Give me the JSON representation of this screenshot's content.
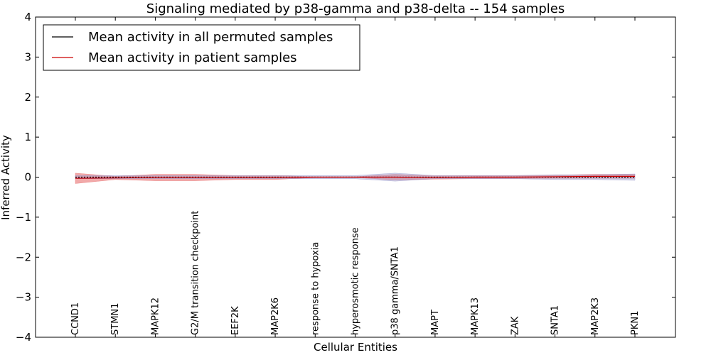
{
  "chart_data": {
    "type": "line",
    "title": "Signaling mediated by p38-gamma and p38-delta -- 154 samples",
    "xlabel": "Cellular Entities",
    "ylabel": "Inferred Activity",
    "ylim": [
      -4,
      4
    ],
    "yticks": [
      4,
      3,
      2,
      1,
      0,
      -1,
      -2,
      -3,
      -4
    ],
    "ytick_labels": [
      "4",
      "3",
      "2",
      "1",
      "0",
      "−1",
      "−2",
      "−3",
      "−4"
    ],
    "categories": [
      "CCND1",
      "STMN1",
      "MAPK12",
      "G2/M transition checkpoint",
      "EEF2K",
      "MAP2K6",
      "response to hypoxia",
      "hyperosmotic response",
      "p38 gamma/SNTA1",
      "MAPT",
      "MAPK13",
      "ZAK",
      "SNTA1",
      "MAP2K3",
      "PKN1"
    ],
    "legend": {
      "position": "top-left"
    },
    "series": [
      {
        "name": "Mean activity in all permuted samples",
        "color": "#000000",
        "values": [
          0,
          0,
          0,
          0,
          0,
          0,
          0,
          0,
          0,
          0,
          0,
          0,
          0,
          0,
          0
        ],
        "band_half_width": [
          0.04,
          0.04,
          0.04,
          0.04,
          0.04,
          0.04,
          0.04,
          0.04,
          0.1,
          0.04,
          0.04,
          0.04,
          0.06,
          0.06,
          0.08
        ],
        "band_color": "#9999cc"
      },
      {
        "name": "Mean activity in patient samples",
        "color": "#cc0000",
        "values": [
          -0.03,
          -0.02,
          -0.01,
          -0.01,
          -0.01,
          -0.01,
          0.0,
          0.0,
          0.0,
          -0.01,
          0.0,
          0.0,
          0.01,
          0.02,
          0.02
        ],
        "band_half_width": [
          0.13,
          0.04,
          0.08,
          0.08,
          0.05,
          0.05,
          0.01,
          0.01,
          0.07,
          0.04,
          0.04,
          0.04,
          0.04,
          0.05,
          0.05
        ],
        "band_color": "#e87070"
      }
    ]
  }
}
